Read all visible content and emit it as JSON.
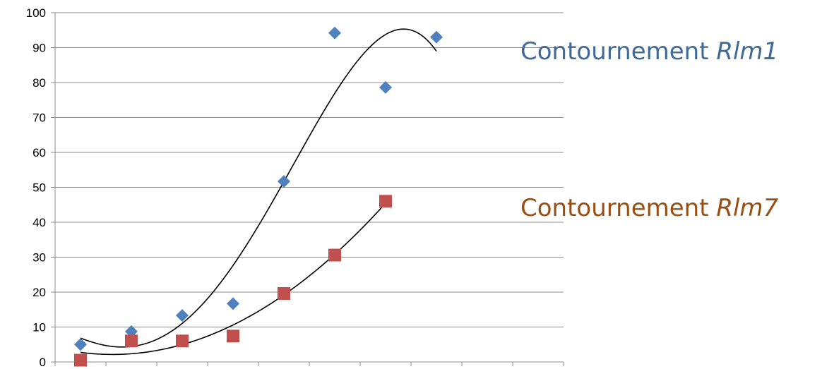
{
  "chart_data": {
    "type": "scatter",
    "ylim": [
      0,
      100
    ],
    "yticks": [
      0,
      10,
      20,
      30,
      40,
      50,
      60,
      70,
      80,
      90,
      100
    ],
    "grid": true,
    "x": [
      1,
      2,
      3,
      4,
      5,
      6,
      7,
      8
    ],
    "series": [
      {
        "name": "Contournement Rlm1",
        "label_prefix": "Contournement ",
        "label_italic": "Rlm1",
        "color": "#4F81BD",
        "marker": "diamond",
        "x": [
          1,
          2,
          3,
          4,
          5,
          6,
          7,
          8
        ],
        "values": [
          5,
          8.7,
          13.3,
          16.7,
          51.7,
          94.2,
          78.6,
          93.0
        ],
        "trendline": "polynomial"
      },
      {
        "name": "Contournement Rlm7",
        "label_prefix": "Contournement ",
        "label_italic": "Rlm7",
        "color": "#C0504D",
        "marker": "square",
        "x": [
          1,
          2,
          3,
          4,
          5,
          6,
          7
        ],
        "values": [
          0.5,
          6.0,
          6.0,
          7.4,
          19.6,
          30.6,
          46.0
        ],
        "trendline": "polynomial"
      }
    ],
    "trendline_color": "#000000",
    "label_colors": [
      "#3F6A99",
      "#9A4F12"
    ]
  }
}
